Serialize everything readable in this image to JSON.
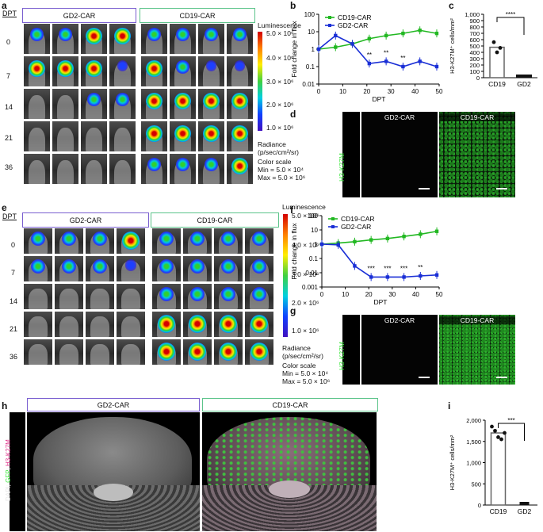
{
  "panels": {
    "a": "a",
    "b": "b",
    "c": "c",
    "d": "d",
    "e": "e",
    "f": "f",
    "g": "g",
    "h": "h",
    "i": "i"
  },
  "imaging": {
    "dpt_header": "DPT",
    "days": [
      "0",
      "7",
      "14",
      "21",
      "36"
    ],
    "gd2_label": "GD2-CAR",
    "cd19_label": "CD19-CAR",
    "lum_title": "Luminescence",
    "ticks": [
      "5.0 × 10⁶",
      "4.0 × 10⁶",
      "3.0 × 10⁶",
      "2.0 × 10⁶",
      "1.0 × 10⁶"
    ],
    "radiance": "Radiance",
    "radiance_units": "(p/sec/cm²/sr)",
    "color_scale": "Color scale",
    "min": "Min = 5.0 × 10⁴",
    "max": "Max = 5.0 × 10⁶"
  },
  "micro": {
    "gd2": "GD2-CAR",
    "cd19": "CD19-CAR",
    "stain": "H3-K27M"
  },
  "section": {
    "gd2": "GD2-CAR",
    "cd19": "CD19-CAR",
    "stain_dapi": "DAPI",
    "stain_gfp": "GFP",
    "stain_h3": "H3-K27M"
  },
  "chart_data": [
    {
      "id": "b",
      "type": "line",
      "xlabel": "DPT",
      "ylabel": "Fold change in flux",
      "xlim": [
        0,
        50
      ],
      "ylim": [
        0.01,
        100
      ],
      "yscale": "log",
      "xticks": [
        "0",
        "10",
        "20",
        "30",
        "40",
        "50"
      ],
      "yticks": [
        "0.01",
        "0.1",
        "1",
        "10",
        "100"
      ],
      "series": [
        {
          "name": "CD19-CAR",
          "color": "#22b822",
          "x": [
            0,
            7,
            14,
            21,
            28,
            35,
            42,
            49
          ],
          "y": [
            1,
            1.3,
            2,
            4,
            6,
            8,
            12,
            8
          ]
        },
        {
          "name": "GD2-CAR",
          "color": "#1a2fd6",
          "x": [
            0,
            7,
            14,
            21,
            28,
            35,
            42,
            49
          ],
          "y": [
            1,
            6,
            2,
            0.15,
            0.2,
            0.1,
            0.2,
            0.1
          ]
        }
      ],
      "annotations": [
        "**",
        "**",
        "**"
      ]
    },
    {
      "id": "c",
      "type": "bar",
      "ylabel": "H3-K27M⁺ cells/mm²",
      "categories": [
        "CD19",
        "GD2"
      ],
      "values": [
        480,
        0
      ],
      "ylim": [
        0,
        1000
      ],
      "yticks": [
        "0",
        "100",
        "200",
        "300",
        "400",
        "500",
        "600",
        "700",
        "800",
        "900",
        "1,000"
      ],
      "points": [
        [
          560,
          400,
          470
        ],
        [
          0,
          0,
          0,
          0,
          0
        ]
      ],
      "significance": "****"
    },
    {
      "id": "f",
      "type": "line",
      "xlabel": "DPT",
      "ylabel": "Fold change in flux",
      "xlim": [
        0,
        50
      ],
      "ylim": [
        0.001,
        100
      ],
      "yscale": "log",
      "xticks": [
        "0",
        "10",
        "20",
        "30",
        "40",
        "50"
      ],
      "yticks": [
        "0.001",
        "0.01",
        "0.1",
        "1",
        "10",
        "100"
      ],
      "series": [
        {
          "name": "CD19-CAR",
          "color": "#22b822",
          "x": [
            0,
            7,
            14,
            21,
            28,
            35,
            42,
            49
          ],
          "y": [
            1,
            1.2,
            1.5,
            2,
            2.5,
            3.5,
            5,
            8
          ]
        },
        {
          "name": "GD2-CAR",
          "color": "#1a2fd6",
          "x": [
            0,
            7,
            14,
            21,
            28,
            35,
            42,
            49
          ],
          "y": [
            1,
            0.9,
            0.03,
            0.005,
            0.005,
            0.005,
            0.006,
            0.007
          ]
        }
      ],
      "annotations": [
        "***",
        "***",
        "***",
        "**"
      ]
    },
    {
      "id": "i",
      "type": "bar",
      "ylabel": "H3-K27M⁺ cells/mm²",
      "categories": [
        "CD19",
        "GD2"
      ],
      "values": [
        1700,
        0
      ],
      "ylim": [
        0,
        2000
      ],
      "yticks": [
        "0",
        "500",
        "1,000",
        "1,500",
        "2,000"
      ],
      "points": [
        [
          1850,
          1750,
          1600,
          1550,
          1700
        ],
        [
          0,
          0,
          0
        ]
      ],
      "significance": "***"
    }
  ]
}
